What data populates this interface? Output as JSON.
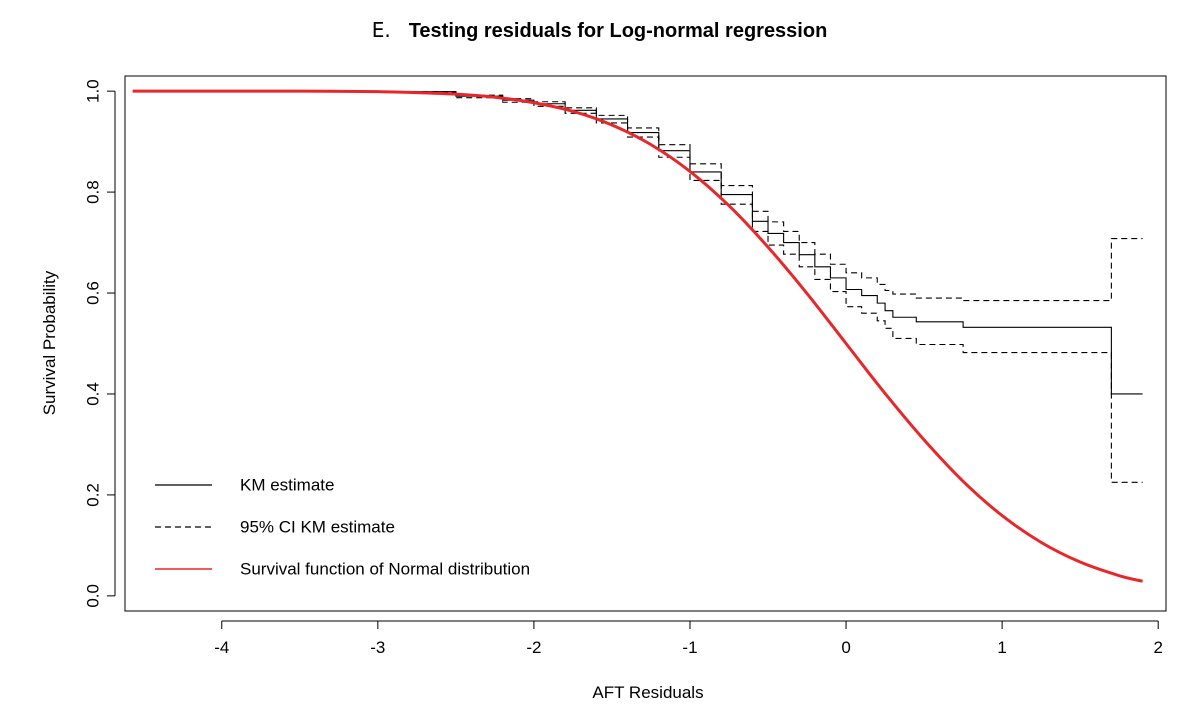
{
  "chart_data": {
    "type": "line",
    "panel_label": "E.",
    "title": "Testing residuals for Log-normal regression",
    "xlabel": "AFT Residuals",
    "ylabel": "Survival Probability",
    "xlim": [
      -4.62,
      2.05
    ],
    "ylim": [
      -0.03,
      1.03
    ],
    "xticks": [
      -4,
      -3,
      -2,
      -1,
      0,
      1,
      2
    ],
    "xtick_labels": [
      "-4",
      "-3",
      "-2",
      "-1",
      "0",
      "1",
      "2"
    ],
    "yticks": [
      0.0,
      0.2,
      0.4,
      0.6,
      0.8,
      1.0
    ],
    "ytick_labels": [
      "0.0",
      "0.2",
      "0.4",
      "0.6",
      "0.8",
      "1.0"
    ],
    "grid": false,
    "legend_position": "bottom-left",
    "series": [
      {
        "name": "KM estimate",
        "style": "step",
        "color": "#000000",
        "dash": "solid",
        "x": [
          -4.57,
          -3.0,
          -2.5,
          -2.2,
          -2.0,
          -1.8,
          -1.6,
          -1.4,
          -1.2,
          -1.0,
          -0.8,
          -0.6,
          -0.5,
          -0.4,
          -0.3,
          -0.2,
          -0.1,
          0.0,
          0.1,
          0.2,
          0.25,
          0.3,
          0.45,
          0.75,
          1.7,
          1.9
        ],
        "y": [
          1.0,
          0.999,
          0.99,
          0.982,
          0.975,
          0.962,
          0.945,
          0.918,
          0.882,
          0.84,
          0.795,
          0.742,
          0.718,
          0.7,
          0.676,
          0.652,
          0.63,
          0.607,
          0.595,
          0.58,
          0.565,
          0.552,
          0.543,
          0.532,
          0.4,
          0.4
        ]
      },
      {
        "name": "95% CI KM estimate",
        "style": "step",
        "color": "#000000",
        "dash": "dashed",
        "x": [
          -4.57,
          -3.0,
          -2.5,
          -2.2,
          -2.0,
          -1.8,
          -1.6,
          -1.4,
          -1.2,
          -1.0,
          -0.8,
          -0.6,
          -0.5,
          -0.4,
          -0.3,
          -0.2,
          -0.1,
          0.0,
          0.1,
          0.2,
          0.25,
          0.3,
          0.45,
          0.75,
          1.7,
          1.9
        ],
        "y": [
          1.0,
          0.999,
          0.992,
          0.985,
          0.979,
          0.967,
          0.952,
          0.927,
          0.894,
          0.856,
          0.813,
          0.762,
          0.741,
          0.722,
          0.7,
          0.677,
          0.657,
          0.64,
          0.63,
          0.617,
          0.605,
          0.598,
          0.59,
          0.585,
          0.708,
          0.708
        ]
      },
      {
        "name": "",
        "style": "step",
        "color": "#000000",
        "dash": "dashed",
        "x": [
          -4.57,
          -3.0,
          -2.5,
          -2.2,
          -2.0,
          -1.8,
          -1.6,
          -1.4,
          -1.2,
          -1.0,
          -0.8,
          -0.6,
          -0.5,
          -0.4,
          -0.3,
          -0.2,
          -0.1,
          0.0,
          0.1,
          0.2,
          0.25,
          0.3,
          0.45,
          0.75,
          1.7,
          1.9
        ],
        "y": [
          1.0,
          0.998,
          0.987,
          0.978,
          0.97,
          0.956,
          0.937,
          0.909,
          0.869,
          0.823,
          0.776,
          0.722,
          0.695,
          0.677,
          0.652,
          0.627,
          0.603,
          0.573,
          0.56,
          0.545,
          0.53,
          0.51,
          0.498,
          0.482,
          0.225,
          0.225
        ]
      },
      {
        "name": "Survival function of Normal distribution",
        "style": "smooth",
        "color": "#e8272b",
        "dash": "solid",
        "x": [
          -4.57,
          -4.0,
          -3.5,
          -3.0,
          -2.75,
          -2.5,
          -2.25,
          -2.0,
          -1.75,
          -1.5,
          -1.25,
          -1.0,
          -0.75,
          -0.5,
          -0.25,
          0.0,
          0.25,
          0.5,
          0.75,
          1.0,
          1.25,
          1.5,
          1.75,
          1.9
        ],
        "y": [
          1.0,
          1.0,
          1.0,
          0.999,
          0.997,
          0.994,
          0.988,
          0.977,
          0.96,
          0.933,
          0.894,
          0.841,
          0.773,
          0.691,
          0.599,
          0.5,
          0.401,
          0.309,
          0.227,
          0.159,
          0.106,
          0.067,
          0.04,
          0.029
        ]
      }
    ]
  }
}
